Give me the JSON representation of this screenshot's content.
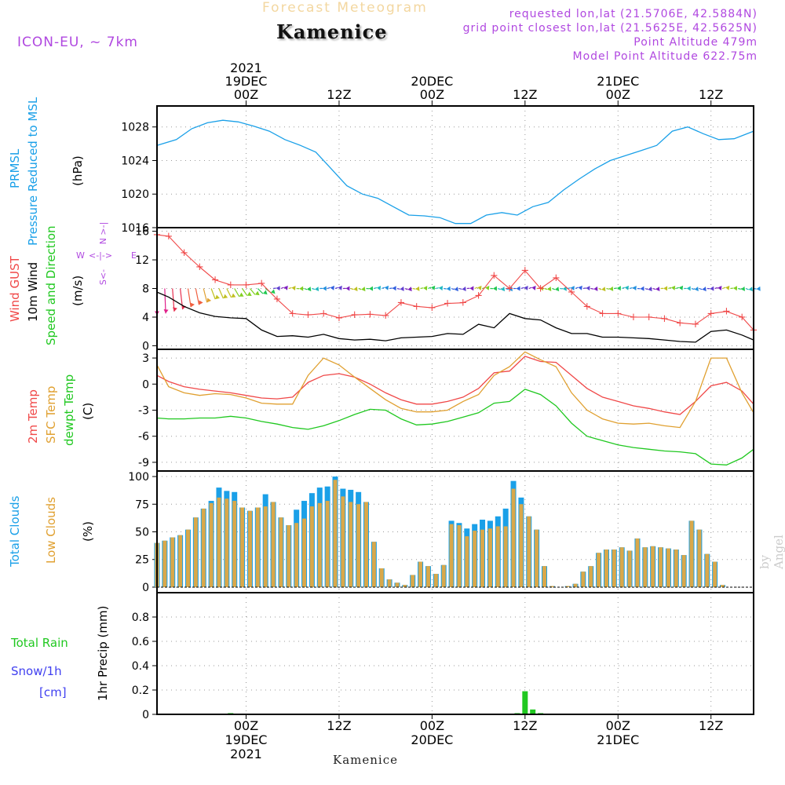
{
  "header": {
    "title": "Forecast Meteogram",
    "location": "Kamenice",
    "model": "ICON-EU, ~ 7km",
    "requested": "requested lon,lat (21.5706E, 42.5884N)",
    "gridpoint": "grid point closest lon,lat (21.5625E, 42.5625N)",
    "point_alt": "Point Altitude 479m",
    "model_alt": "Model Point Altitude 622.75m",
    "credit": "by Angel",
    "footer": "Kamenice"
  },
  "colors": {
    "pressure": "#1aa0e8",
    "gust": "#f04848",
    "wind": "#000000",
    "temp2m": "#f04848",
    "sfc": "#e0a030",
    "dew": "#20c820",
    "total_clouds": "#1aa0e8",
    "low_clouds": "#d9a84a",
    "rain": "#20c820",
    "snow": "#4040f0"
  },
  "time_axis": {
    "top_ticks": [
      {
        "line1": "2021",
        "line2": "19DEC",
        "line3": "00Z",
        "h": 0
      },
      {
        "line1": "",
        "line2": "",
        "line3": "12Z",
        "h": 12
      },
      {
        "line1": "",
        "line2": "20DEC",
        "line3": "00Z",
        "h": 24
      },
      {
        "line1": "",
        "line2": "",
        "line3": "12Z",
        "h": 36
      },
      {
        "line1": "",
        "line2": "21DEC",
        "line3": "00Z",
        "h": 48
      },
      {
        "line1": "",
        "line2": "",
        "line3": "12Z",
        "h": 60
      }
    ],
    "bottom_ticks": [
      {
        "line1": "00Z",
        "line2": "19DEC",
        "line3": "2021",
        "h": 0
      },
      {
        "line1": "12Z",
        "line2": "",
        "line3": "",
        "h": 12
      },
      {
        "line1": "00Z",
        "line2": "20DEC",
        "line3": "",
        "h": 24
      },
      {
        "line1": "12Z",
        "line2": "",
        "line3": "",
        "h": 36
      },
      {
        "line1": "00Z",
        "line2": "21DEC",
        "line3": "",
        "h": 48
      },
      {
        "line1": "12Z",
        "line2": "",
        "line3": "",
        "h": 60
      }
    ],
    "start_hour": -11.5,
    "end_hour": 65.5
  },
  "panels": {
    "pressure": {
      "label1": "PRMSL",
      "label2": "Pressure Reduced to MSL",
      "unit": "(hPa)",
      "ticks": [
        1016,
        1020,
        1024,
        1028
      ],
      "ylim": [
        1016,
        1030.5
      ]
    },
    "wind": {
      "label1": "Wind GUST",
      "label2": "10m Wind",
      "label3": "Speed and Direction",
      "unit": "(m/s)",
      "ticks": [
        0,
        4,
        8,
        12,
        16
      ],
      "ylim": [
        -0.5,
        16.5
      ],
      "compass": {
        "n": "N",
        "s": "S",
        "e": "E",
        "w": "W"
      }
    },
    "temp": {
      "label1": "2m Temp",
      "label2": "SFC Temp",
      "label3": "dewpt Temp",
      "unit": "(C)",
      "ticks": [
        -9,
        -6,
        -3,
        0,
        3
      ],
      "ylim": [
        -10,
        4
      ]
    },
    "clouds": {
      "label1": "Total Clouds",
      "label2": "Low Clouds",
      "unit": "(%)",
      "ticks": [
        0,
        25,
        50,
        75,
        100
      ],
      "ylim": [
        -5,
        105
      ]
    },
    "precip": {
      "label1": "Total  Rain",
      "label2": "Snow/1h",
      "label3": "[cm]",
      "unit": "1hr Precip (mm)",
      "ticks": [
        "0",
        "0.2",
        "0.4",
        "0.6",
        "0.8"
      ],
      "ylim": [
        0,
        1.0
      ]
    }
  },
  "chart_data": [
    {
      "type": "line",
      "title": "PRMSL Pressure Reduced to MSL",
      "ylabel": "hPa",
      "ylim": [
        1016,
        1030.5
      ],
      "x": [
        -11.5,
        -9,
        -7,
        -5,
        -3,
        -1,
        1,
        3,
        5,
        7,
        9,
        11,
        13,
        15,
        17,
        19,
        21,
        23,
        25,
        27,
        29,
        31,
        33,
        35,
        37,
        39,
        41,
        43,
        45,
        47,
        49,
        51,
        53,
        55,
        57,
        59,
        61,
        63,
        65.5
      ],
      "values": [
        1025.8,
        1026.5,
        1027.8,
        1028.5,
        1028.8,
        1028.6,
        1028.1,
        1027.5,
        1026.5,
        1025.8,
        1025.0,
        1023.0,
        1021.0,
        1020.0,
        1019.5,
        1018.5,
        1017.5,
        1017.4,
        1017.2,
        1016.5,
        1016.5,
        1017.5,
        1017.8,
        1017.5,
        1018.5,
        1019.0,
        1020.5,
        1021.8,
        1023.0,
        1024.0,
        1024.6,
        1025.2,
        1025.8,
        1027.5,
        1028.0,
        1027.2,
        1026.5,
        1026.6,
        1027.5
      ]
    },
    {
      "type": "line",
      "title": "Wind GUST / 10m Wind",
      "ylabel": "m/s",
      "ylim": [
        -0.5,
        16.5
      ],
      "x": [
        -11.5,
        -10,
        -8,
        -6,
        -4,
        -2,
        0,
        2,
        4,
        6,
        8,
        10,
        12,
        14,
        16,
        18,
        20,
        22,
        24,
        26,
        28,
        30,
        32,
        34,
        36,
        38,
        40,
        42,
        44,
        46,
        48,
        50,
        52,
        54,
        56,
        58,
        60,
        62,
        64,
        65.5
      ],
      "series": [
        {
          "name": "Wind GUST",
          "values": [
            15.5,
            15.3,
            13.0,
            11.0,
            9.2,
            8.5,
            8.5,
            8.7,
            6.5,
            4.5,
            4.3,
            4.5,
            3.9,
            4.3,
            4.4,
            4.2,
            6.0,
            5.5,
            5.3,
            5.9,
            6.0,
            7.0,
            9.8,
            8.0,
            10.5,
            8.0,
            9.5,
            7.5,
            5.5,
            4.5,
            4.5,
            4.0,
            4.0,
            3.8,
            3.2,
            3.0,
            4.5,
            4.8,
            4.0,
            2.2
          ]
        },
        {
          "name": "10m Wind",
          "values": [
            7.5,
            6.8,
            5.5,
            4.6,
            4.1,
            3.9,
            3.8,
            2.2,
            1.3,
            1.4,
            1.2,
            1.6,
            1.0,
            0.8,
            0.9,
            0.7,
            1.1,
            1.2,
            1.3,
            1.7,
            1.6,
            3.0,
            2.5,
            4.5,
            3.8,
            3.6,
            2.5,
            1.7,
            1.7,
            1.2,
            1.2,
            1.1,
            1.0,
            0.8,
            0.6,
            0.5,
            2.0,
            2.2,
            1.5,
            0.8
          ]
        }
      ],
      "arrow_speed_level": 8
    },
    {
      "type": "line",
      "title": "Temperatures",
      "ylabel": "C",
      "ylim": [
        -10,
        4
      ],
      "x": [
        -11.5,
        -10,
        -8,
        -6,
        -4,
        -2,
        0,
        2,
        4,
        6,
        8,
        10,
        12,
        14,
        16,
        18,
        20,
        22,
        24,
        26,
        28,
        30,
        32,
        34,
        36,
        38,
        40,
        42,
        44,
        46,
        48,
        50,
        52,
        54,
        56,
        58,
        60,
        62,
        64,
        65.5
      ],
      "series": [
        {
          "name": "2m Temp",
          "values": [
            1.0,
            0.3,
            -0.3,
            -0.6,
            -0.8,
            -1.0,
            -1.3,
            -1.6,
            -1.7,
            -1.5,
            0.2,
            1.0,
            1.2,
            0.8,
            0.0,
            -1.0,
            -1.8,
            -2.3,
            -2.3,
            -2.0,
            -1.5,
            -0.5,
            1.3,
            1.5,
            3.2,
            2.6,
            2.5,
            1.0,
            -0.5,
            -1.5,
            -2.0,
            -2.5,
            -2.8,
            -3.2,
            -3.5,
            -2.0,
            -0.2,
            0.2,
            -0.8,
            -2.3
          ]
        },
        {
          "name": "SFC Temp",
          "values": [
            2.2,
            -0.3,
            -1.0,
            -1.3,
            -1.1,
            -1.2,
            -1.6,
            -2.2,
            -2.3,
            -2.3,
            1.0,
            3.0,
            2.2,
            0.8,
            -0.5,
            -1.8,
            -2.8,
            -3.2,
            -3.2,
            -3.0,
            -2.0,
            -1.2,
            1.0,
            2.0,
            3.7,
            2.8,
            2.0,
            -1.0,
            -3.0,
            -4.0,
            -4.5,
            -4.6,
            -4.5,
            -4.8,
            -5.0,
            -2.0,
            3.0,
            3.0,
            -1.0,
            -3.3
          ]
        },
        {
          "name": "dewpt Temp",
          "values": [
            -3.9,
            -4.0,
            -4.0,
            -3.9,
            -3.9,
            -3.7,
            -3.9,
            -4.3,
            -4.6,
            -5.0,
            -5.2,
            -4.8,
            -4.2,
            -3.5,
            -2.9,
            -3.0,
            -4.0,
            -4.7,
            -4.6,
            -4.3,
            -3.8,
            -3.3,
            -2.2,
            -2.0,
            -0.6,
            -1.2,
            -2.5,
            -4.5,
            -6.0,
            -6.5,
            -7.0,
            -7.3,
            -7.5,
            -7.7,
            -7.8,
            -8.0,
            -9.2,
            -9.3,
            -8.5,
            -7.5
          ]
        }
      ]
    },
    {
      "type": "bar",
      "title": "Total Clouds / Low Clouds",
      "ylabel": "%",
      "ylim": [
        -5,
        105
      ],
      "x_start": -11.5,
      "x_step": 1,
      "series": [
        {
          "name": "Total Clouds",
          "values": [
            40,
            42,
            45,
            47,
            52,
            63,
            71,
            78,
            90,
            87,
            86,
            72,
            69,
            72,
            84,
            77,
            63,
            56,
            70,
            78,
            85,
            90,
            91,
            100,
            89,
            88,
            86,
            77,
            41,
            17,
            7,
            4,
            2,
            11,
            23,
            19,
            12,
            20,
            60,
            58,
            53,
            57,
            61,
            60,
            64,
            71,
            96,
            81,
            64,
            52,
            19,
            1,
            0,
            1,
            3,
            14,
            19,
            31,
            34,
            34,
            36,
            33,
            44,
            36,
            37,
            36,
            35,
            34,
            29,
            60,
            52,
            30,
            23,
            2,
            0,
            0,
            0
          ]
        },
        {
          "name": "Low Clouds",
          "values": [
            40,
            42,
            45,
            47,
            52,
            63,
            71,
            76,
            81,
            80,
            78,
            72,
            69,
            72,
            73,
            77,
            63,
            56,
            58,
            62,
            73,
            76,
            78,
            97,
            82,
            77,
            75,
            77,
            41,
            17,
            7,
            4,
            2,
            11,
            23,
            19,
            12,
            20,
            57,
            56,
            46,
            51,
            52,
            53,
            55,
            55,
            89,
            75,
            64,
            52,
            19,
            1,
            0,
            1,
            3,
            14,
            19,
            31,
            34,
            34,
            36,
            33,
            44,
            36,
            37,
            36,
            35,
            34,
            29,
            60,
            52,
            30,
            23,
            2,
            0,
            0,
            0
          ]
        }
      ]
    },
    {
      "type": "bar",
      "title": "1hr Precip",
      "ylabel": "mm",
      "ylim": [
        0,
        1.0
      ],
      "x": [
        -2,
        -1,
        34,
        35,
        36,
        37,
        38
      ],
      "series": [
        {
          "name": "Total Rain",
          "values": [
            0.01,
            0.005,
            0.005,
            0.01,
            0.19,
            0.04,
            0.01
          ]
        },
        {
          "name": "Snow/1h",
          "values": [
            0,
            0,
            0,
            0,
            0,
            0,
            0
          ]
        }
      ]
    }
  ]
}
